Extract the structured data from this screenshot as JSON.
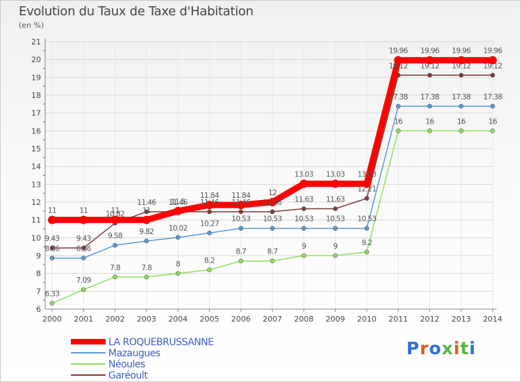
{
  "title": "Evolution du Taux de Taxe d'Habitation",
  "unit_label": "(en %)",
  "logo": {
    "text": "Proxiti",
    "colors": [
      "#2f6fd6",
      "#e8561b",
      "#2f6fd6",
      "#58b53b",
      "#e8561b",
      "#58b53b",
      "#2f6fd6"
    ]
  },
  "chart_data": {
    "type": "line",
    "x": [
      "2000",
      "2001",
      "2002",
      "2003",
      "2004",
      "2005",
      "2006",
      "2007",
      "2008",
      "2009",
      "2010",
      "2011",
      "2012",
      "2013",
      "2014"
    ],
    "ylim": [
      6,
      21
    ],
    "yticks": [
      6,
      7,
      8,
      9,
      10,
      11,
      12,
      13,
      14,
      15,
      16,
      17,
      18,
      19,
      20,
      21
    ],
    "legend_position": "bottom-left",
    "series": [
      {
        "name": "LA ROQUEBRUSSANNE",
        "color": "#ff0000",
        "values": [
          11,
          11,
          11,
          11,
          11.5,
          11.84,
          11.84,
          12,
          13.03,
          13.03,
          13.03,
          19.96,
          19.96,
          19.96,
          19.96
        ],
        "labels": [
          "11",
          "11",
          "11",
          "11",
          "11.5",
          "11.84",
          "11.84",
          "12",
          "13.03",
          "13.03",
          "13.03",
          "19.96",
          "19.96",
          "19.96",
          "19.96"
        ]
      },
      {
        "name": "Mazaugues",
        "color": "#5b9bd5",
        "values": [
          8.86,
          8.86,
          9.58,
          9.82,
          10.02,
          10.27,
          10.53,
          10.53,
          10.53,
          10.53,
          10.53,
          17.38,
          17.38,
          17.38,
          17.38
        ],
        "labels": [
          "8.86",
          "8.86",
          "9.58",
          "9.82",
          "10.02",
          "10.27",
          "10.53",
          "10.53",
          "10.53",
          "10.53",
          "10.53",
          "17.38",
          "17.38",
          "17.38",
          "17.38"
        ]
      },
      {
        "name": "Néoules",
        "color": "#8ee05a",
        "values": [
          6.33,
          7.09,
          7.8,
          7.8,
          8,
          8.2,
          8.7,
          8.7,
          9,
          9,
          9.2,
          16,
          16,
          16,
          16
        ],
        "labels": [
          "6.33",
          "7.09",
          "7.8",
          "7.8",
          "8",
          "8.2",
          "8.7",
          "8.7",
          "9",
          "9",
          "9.2",
          "16",
          "16",
          "16",
          "16"
        ]
      },
      {
        "name": "Garéoult",
        "color": "#7a3a3a",
        "values": [
          9.43,
          9.43,
          10.82,
          11.46,
          11.46,
          11.46,
          11.46,
          11.46,
          11.63,
          11.63,
          12.21,
          19.12,
          19.12,
          19.12,
          19.12
        ],
        "labels": [
          "9.43",
          "9.43",
          "10.82",
          "11.46",
          "11.46",
          "11.46",
          "11.46",
          "11.46",
          "11.63",
          "11.63",
          "12.21",
          "19.12",
          "19.12",
          "19.12",
          "19.12"
        ]
      }
    ]
  }
}
